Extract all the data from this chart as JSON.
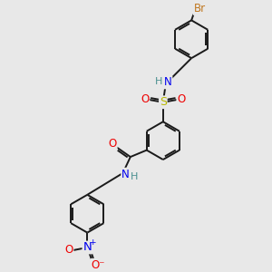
{
  "background_color": "#e8e8e8",
  "figsize": [
    3.0,
    3.0
  ],
  "dpi": 100,
  "atom_colors": {
    "C": "#1a1a1a",
    "H": "#4a9090",
    "N": "#0000ee",
    "O": "#ee0000",
    "S": "#b8b800",
    "Br": "#c07820"
  },
  "bond_color": "#1a1a1a",
  "bond_width": 1.4,
  "font_size": 8.5
}
